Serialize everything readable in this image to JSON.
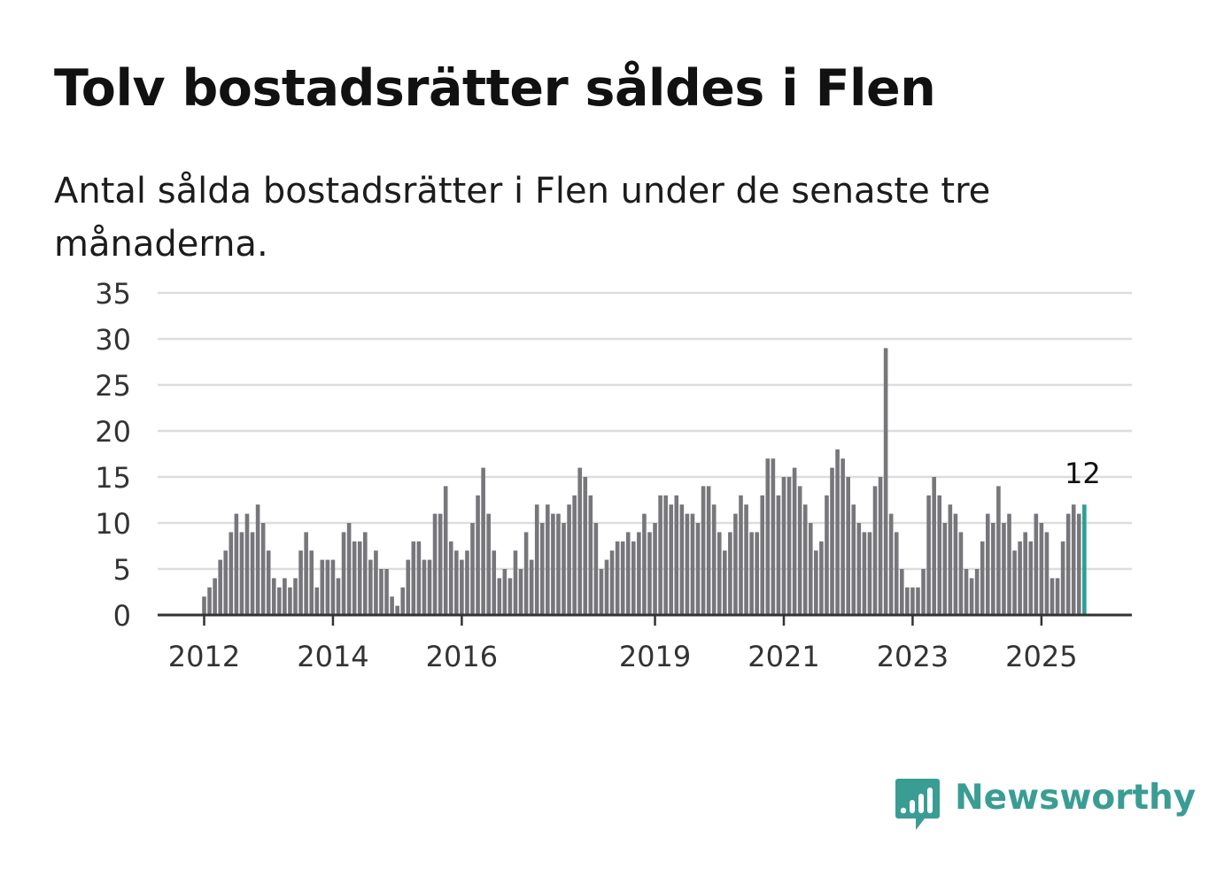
{
  "title": "Tolv bostadsrätter såldes i Flen",
  "subtitle": "Antal sålda bostadsrätter i Flen under de senaste tre månaderna.",
  "brand": {
    "name": "Newsworthy",
    "icon": "bar-chart-icon",
    "color": "#3a9d94"
  },
  "chart_data": {
    "type": "bar",
    "title": "Tolv bostadsrätter såldes i Flen",
    "xlabel": "",
    "ylabel": "",
    "ylim": [
      0,
      35
    ],
    "yticks": [
      "0",
      "5",
      "10",
      "15",
      "20",
      "25",
      "30",
      "35"
    ],
    "xticks": [
      {
        "label": "2012",
        "index": 0
      },
      {
        "label": "2014",
        "index": 24
      },
      {
        "label": "2016",
        "index": 48
      },
      {
        "label": "2019",
        "index": 84
      },
      {
        "label": "2021",
        "index": 108
      },
      {
        "label": "2023",
        "index": 132
      },
      {
        "label": "2025",
        "index": 156
      }
    ],
    "grid": true,
    "colors": {
      "bar": "#77767a",
      "highlight": "#2e9e96",
      "grid": "#dddddd",
      "axis": "#333333"
    },
    "annotation": {
      "text": "12",
      "index": 164
    },
    "highlight_index": 164,
    "values": [
      2,
      3,
      4,
      6,
      7,
      9,
      11,
      9,
      11,
      9,
      12,
      10,
      7,
      4,
      3,
      4,
      3,
      4,
      7,
      9,
      7,
      3,
      6,
      6,
      6,
      4,
      9,
      10,
      8,
      8,
      9,
      6,
      7,
      5,
      5,
      2,
      1,
      3,
      6,
      8,
      8,
      6,
      6,
      11,
      11,
      14,
      8,
      7,
      6,
      7,
      10,
      13,
      16,
      11,
      7,
      4,
      5,
      4,
      7,
      5,
      9,
      6,
      12,
      10,
      12,
      11,
      11,
      10,
      12,
      13,
      16,
      15,
      13,
      10,
      5,
      6,
      7,
      8,
      8,
      9,
      8,
      9,
      11,
      9,
      10,
      13,
      13,
      12,
      13,
      12,
      11,
      11,
      10,
      14,
      14,
      12,
      9,
      7,
      9,
      11,
      13,
      12,
      9,
      9,
      13,
      17,
      17,
      13,
      15,
      15,
      16,
      14,
      12,
      10,
      7,
      8,
      13,
      16,
      18,
      17,
      15,
      12,
      10,
      9,
      9,
      14,
      15,
      29,
      11,
      9,
      5,
      3,
      3,
      3,
      5,
      13,
      15,
      13,
      10,
      12,
      11,
      9,
      5,
      4,
      5,
      8,
      11,
      10,
      14,
      10,
      11,
      7,
      8,
      9,
      8,
      11,
      10,
      9,
      4,
      4,
      8,
      11,
      12,
      11,
      12
    ]
  }
}
